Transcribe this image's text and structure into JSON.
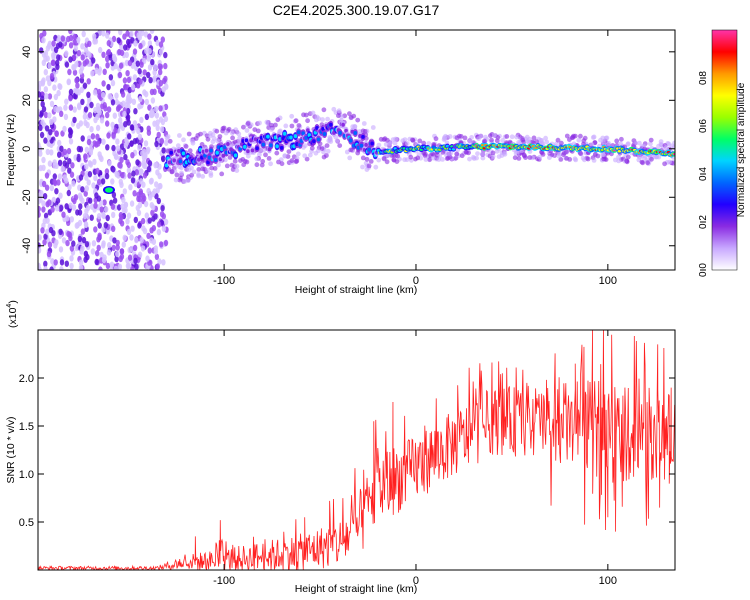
{
  "chart_data": [
    {
      "type": "heatmap",
      "title": "C2E4.2025.300.19.07.G17",
      "xlabel": "Height of straight line (km)",
      "ylabel": "Frequency (Hz)",
      "xlim": [
        -197,
        135
      ],
      "ylim": [
        -50,
        49
      ],
      "xticks": [
        -100,
        0,
        100
      ],
      "yticks": [
        -40,
        -20,
        0,
        20,
        40
      ],
      "colorbar": {
        "label": "Normalized spectral amplitude",
        "range": [
          0,
          1
        ],
        "ticks": [
          "0.0",
          "0.2",
          "0.4",
          "0.6",
          "0.8"
        ],
        "colors": [
          "#ffffff",
          "#c8a8ff",
          "#8a2be2",
          "#2200ff",
          "#0066ff",
          "#00d4ff",
          "#00ff66",
          "#9aff00",
          "#ffff00",
          "#ff9900",
          "#ff0000",
          "#ff33aa"
        ]
      },
      "noise_region_x": [
        -197,
        -130
      ],
      "ridge": [
        {
          "x": -130,
          "y": -4
        },
        {
          "x": -110,
          "y": -3
        },
        {
          "x": -90,
          "y": 1
        },
        {
          "x": -70,
          "y": 3
        },
        {
          "x": -55,
          "y": 5
        },
        {
          "x": -40,
          "y": 8
        },
        {
          "x": -30,
          "y": 3
        },
        {
          "x": -20,
          "y": -1
        },
        {
          "x": 0,
          "y": 0
        },
        {
          "x": 40,
          "y": 1
        },
        {
          "x": 100,
          "y": 0
        },
        {
          "x": 135,
          "y": -2
        }
      ],
      "blob": {
        "x": -160,
        "y": -17
      }
    },
    {
      "type": "line",
      "xlabel": "Height of straight line (km)",
      "ylabel": "SNR (10 * v/v)",
      "multiplier_base": "(x10",
      "multiplier_exp": "4",
      "multiplier_close": ")",
      "xlim": [
        -197,
        135
      ],
      "ylim": [
        0,
        2.5
      ],
      "xticks": [
        -100,
        0,
        100
      ],
      "yticks": [
        0.5,
        1.0,
        1.5,
        2.0
      ],
      "ytick_labels": [
        "0.5",
        "1.0",
        "1.5",
        "2.0"
      ],
      "color": "#ff2020",
      "envelope": [
        {
          "x": -197,
          "base": 0.02,
          "amp": 0.02
        },
        {
          "x": -135,
          "base": 0.02,
          "amp": 0.02
        },
        {
          "x": -120,
          "base": 0.08,
          "amp": 0.08
        },
        {
          "x": -90,
          "base": 0.12,
          "amp": 0.14
        },
        {
          "x": -60,
          "base": 0.18,
          "amp": 0.2
        },
        {
          "x": -40,
          "base": 0.28,
          "amp": 0.25
        },
        {
          "x": -30,
          "base": 0.45,
          "amp": 0.35
        },
        {
          "x": -20,
          "base": 0.85,
          "amp": 0.4
        },
        {
          "x": -5,
          "base": 1.0,
          "amp": 0.35
        },
        {
          "x": 10,
          "base": 1.2,
          "amp": 0.35
        },
        {
          "x": 40,
          "base": 1.55,
          "amp": 0.35
        },
        {
          "x": 70,
          "base": 1.55,
          "amp": 0.4
        },
        {
          "x": 100,
          "base": 1.45,
          "amp": 0.55
        },
        {
          "x": 135,
          "base": 1.4,
          "amp": 0.45
        }
      ],
      "peaks": [
        {
          "x": -115,
          "y": 0.35
        },
        {
          "x": -102,
          "y": 0.52
        },
        {
          "x": -58,
          "y": 0.55
        },
        {
          "x": -45,
          "y": 0.72
        },
        {
          "x": -22,
          "y": 1.55
        },
        {
          "x": -12,
          "y": 1.75
        },
        {
          "x": 45,
          "y": 2.05
        },
        {
          "x": 68,
          "y": 1.98
        },
        {
          "x": 83,
          "y": 2.15
        },
        {
          "x": 92,
          "y": 2.5
        },
        {
          "x": 102,
          "y": 2.45
        },
        {
          "x": 126,
          "y": 2.35
        },
        {
          "x": 133,
          "y": 1.9
        }
      ],
      "dips": [
        {
          "x": 100,
          "y": 0.55
        },
        {
          "x": 104,
          "y": 0.4
        },
        {
          "x": 127,
          "y": 0.65
        },
        {
          "x": 132,
          "y": 0.9
        }
      ]
    }
  ]
}
